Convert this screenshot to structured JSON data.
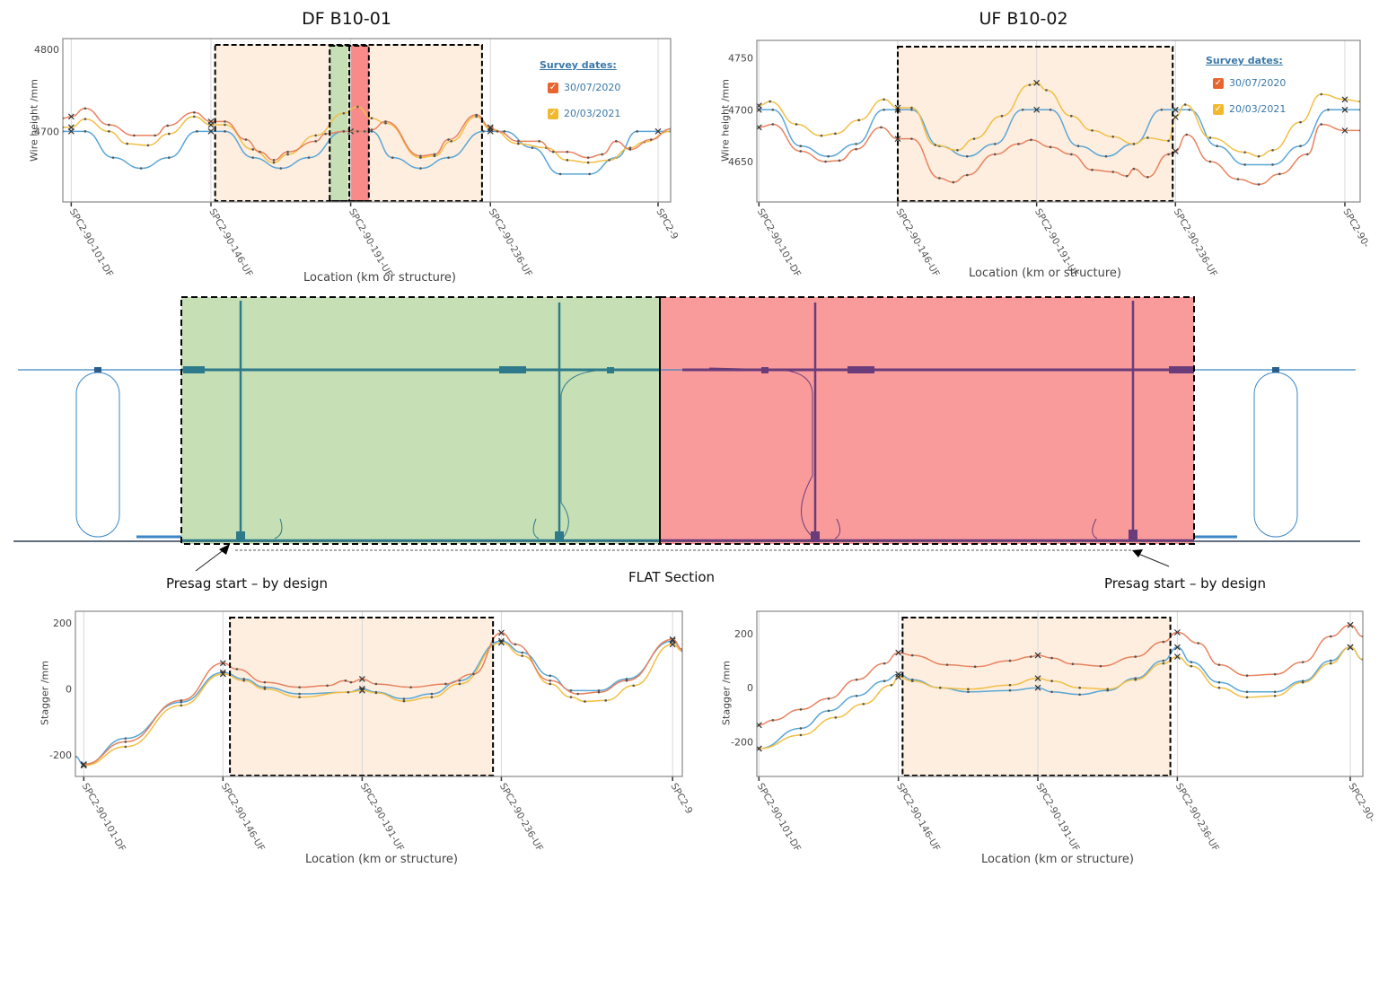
{
  "colors": {
    "design": "#5aa6d6",
    "survey_2020": "#e8825e",
    "survey_2021": "#f2bf45",
    "highlight": "#fdeee0",
    "green_zone": "#c6dfb5",
    "red_zone": "#fa9b9b"
  },
  "legend": {
    "title": "Survey dates:",
    "items": [
      {
        "label": "30/07/2020",
        "color": "#e8825e"
      },
      {
        "label": "20/03/2021",
        "color": "#f2bf45"
      }
    ]
  },
  "diagram": {
    "left_label": "Presag start – by design",
    "center_label": "FLAT Section",
    "right_label": "Presag start – by design"
  },
  "chart_data": [
    {
      "type": "line",
      "title": "DF B10-01",
      "ylabel": "Wire height /mm",
      "xlabel": "Location (km or structure)",
      "xlim": [
        -0.06,
        4.29
      ],
      "ylim": [
        4614,
        4813
      ],
      "yticks": [
        4700,
        4800
      ],
      "grid": "vertical at structures",
      "legend": "top-right",
      "ticks": [
        {
          "label": "SPC2-90-101-DF",
          "x": 0
        },
        {
          "label": "SPC2-90-146-UF",
          "x": 1
        },
        {
          "label": "SPC2-90-191-UF",
          "x": 2
        },
        {
          "label": "SPC2-90-236-UF",
          "x": 3
        },
        {
          "label": "SPC2-9",
          "x": 4.2
        }
      ],
      "highlight": {
        "x": [
          1.03,
          2.94
        ]
      },
      "green_band": {
        "x": [
          1.85,
          1.98
        ]
      },
      "red_band": {
        "x": [
          1.99,
          2.13
        ]
      },
      "series": [
        {
          "key": "design",
          "x": [
            -0.06,
            0,
            0.1,
            0.3,
            0.5,
            0.7,
            0.9,
            1.0,
            1.1,
            1.3,
            1.5,
            1.7,
            1.95,
            2.0,
            2.15,
            2.3,
            2.5,
            2.7,
            2.95,
            3.0,
            3.1,
            3.3,
            3.5,
            3.71,
            3.9,
            4.05,
            4.2,
            4.29
          ],
          "y": [
            4700,
            4700,
            4700,
            4668,
            4655,
            4668,
            4700,
            4700,
            4700,
            4668,
            4655,
            4668,
            4700,
            4700,
            4700,
            4668,
            4655,
            4668,
            4700,
            4700,
            4700,
            4680,
            4648,
            4648,
            4668,
            4700,
            4700,
            4700
          ]
        },
        {
          "name": "30/07/2020",
          "key": "survey_2020",
          "x": [
            -0.06,
            0,
            0.1,
            0.27,
            0.45,
            0.6,
            0.69,
            0.88,
            1.0,
            1.1,
            1.25,
            1.35,
            1.45,
            1.55,
            1.75,
            1.82,
            1.95,
            2.05,
            2.1,
            2.15,
            2.25,
            2.5,
            2.6,
            2.7,
            2.9,
            3.0,
            3.05,
            3.2,
            3.35,
            3.45,
            3.55,
            3.7,
            3.8,
            3.9,
            4.0,
            4.15,
            4.29
          ],
          "y": [
            4716,
            4718,
            4728,
            4708,
            4695,
            4695,
            4707,
            4723,
            4712,
            4712,
            4690,
            4675,
            4665,
            4675,
            4688,
            4697,
            4700,
            4700,
            4700,
            4702,
            4712,
            4670,
            4672,
            4690,
            4720,
            4705,
            4700,
            4688,
            4688,
            4675,
            4675,
            4668,
            4672,
            4688,
            4678,
            4690,
            4703
          ]
        },
        {
          "name": "20/03/2021",
          "key": "survey_2021",
          "x": [
            -0.06,
            0,
            0.1,
            0.27,
            0.4,
            0.55,
            0.7,
            0.88,
            1.0,
            1.1,
            1.3,
            1.45,
            1.55,
            1.75,
            1.95,
            2.05,
            2.15,
            2.25,
            2.5,
            2.6,
            2.72,
            2.9,
            3.0,
            3.2,
            3.4,
            3.55,
            3.7,
            3.85,
            4.0,
            4.1,
            4.29
          ],
          "y": [
            4705,
            4705,
            4715,
            4700,
            4685,
            4683,
            4697,
            4718,
            4708,
            4708,
            4678,
            4662,
            4672,
            4695,
            4722,
            4730,
            4716,
            4710,
            4668,
            4670,
            4688,
            4718,
            4703,
            4685,
            4680,
            4665,
            4662,
            4665,
            4680,
            4687,
            4700
          ]
        }
      ]
    },
    {
      "type": "line",
      "title": "UF B10-02",
      "ylabel": "Wire height /mm",
      "xlabel": "Location (km or structure)",
      "xlim": [
        -0.015,
        4.33
      ],
      "ylim": [
        4611,
        4767
      ],
      "yticks": [
        4650,
        4700,
        4750
      ],
      "grid": "vertical at structures",
      "legend": "top-right",
      "ticks": [
        {
          "label": "SPC2-90-101-DF",
          "x": 0
        },
        {
          "label": "SPC2-90-146-UF",
          "x": 1
        },
        {
          "label": "SPC2-90-191-UF",
          "x": 2
        },
        {
          "label": "SPC2-90-236-UF",
          "x": 3
        },
        {
          "label": "SPC2-90-",
          "x": 4.22
        }
      ],
      "highlight": {
        "x": [
          1.0,
          2.98
        ]
      },
      "series": [
        {
          "key": "design",
          "x": [
            0,
            0.1,
            0.3,
            0.5,
            0.7,
            0.9,
            1.0,
            1.1,
            1.3,
            1.5,
            1.7,
            1.9,
            2.0,
            2.1,
            2.3,
            2.5,
            2.7,
            2.9,
            3.0,
            3.1,
            3.3,
            3.5,
            3.7,
            3.9,
            4.1,
            4.22,
            4.33
          ],
          "y": [
            4700,
            4700,
            4665,
            4655,
            4667,
            4700,
            4700,
            4700,
            4665,
            4655,
            4667,
            4700,
            4700,
            4700,
            4665,
            4655,
            4667,
            4700,
            4700,
            4700,
            4665,
            4647,
            4647,
            4665,
            4700,
            4700,
            4700
          ]
        },
        {
          "name": "30/07/2020",
          "key": "survey_2020",
          "x": [
            0,
            0.1,
            0.3,
            0.48,
            0.58,
            0.7,
            0.88,
            1.0,
            1.1,
            1.3,
            1.4,
            1.5,
            1.7,
            1.87,
            1.96,
            2.1,
            2.25,
            2.4,
            2.55,
            2.65,
            2.7,
            2.8,
            2.95,
            3.0,
            3.08,
            3.25,
            3.45,
            3.6,
            3.75,
            3.95,
            4.05,
            4.22,
            4.33
          ],
          "y": [
            4683,
            4686,
            4660,
            4650,
            4651,
            4662,
            4683,
            4672,
            4672,
            4634,
            4630,
            4637,
            4657,
            4667,
            4671,
            4664,
            4657,
            4642,
            4640,
            4636,
            4643,
            4635,
            4657,
            4660,
            4676,
            4650,
            4633,
            4628,
            4638,
            4657,
            4686,
            4680,
            4680
          ]
        },
        {
          "name": "20/03/2021",
          "key": "survey_2021",
          "x": [
            0,
            0.08,
            0.27,
            0.45,
            0.55,
            0.72,
            0.9,
            1.0,
            1.1,
            1.27,
            1.43,
            1.55,
            1.75,
            1.95,
            2.0,
            2.07,
            2.25,
            2.4,
            2.55,
            2.7,
            2.8,
            2.95,
            3.0,
            3.07,
            3.25,
            3.5,
            3.6,
            3.7,
            3.9,
            4.05,
            4.22,
            4.33
          ],
          "y": [
            4704,
            4708,
            4686,
            4675,
            4677,
            4690,
            4710,
            4702,
            4702,
            4666,
            4661,
            4672,
            4694,
            4724,
            4726,
            4719,
            4694,
            4680,
            4674,
            4667,
            4673,
            4670,
            4693,
            4705,
            4673,
            4659,
            4655,
            4661,
            4688,
            4715,
            4710,
            4708
          ]
        }
      ]
    },
    {
      "type": "line",
      "title": "",
      "ylabel": "Stagger /mm",
      "xlabel": "Location (km or structure)",
      "xlim": [
        -0.06,
        4.3
      ],
      "ylim": [
        -265,
        235
      ],
      "yticks": [
        -200,
        0,
        200
      ],
      "grid": "vertical at structures",
      "ticks": [
        {
          "label": "SPC2-90-101-DF",
          "x": 0
        },
        {
          "label": "SPC2-90-146-UF",
          "x": 1
        },
        {
          "label": "SPC2-90-191-UF",
          "x": 2
        },
        {
          "label": "SPC2-90-236-UF",
          "x": 3
        },
        {
          "label": "SPC2-9",
          "x": 4.23
        }
      ],
      "highlight": {
        "x": [
          1.05,
          2.94
        ]
      },
      "series": [
        {
          "key": "design",
          "x": [
            -0.06,
            0,
            0.3,
            0.7,
            1.0,
            1.15,
            1.3,
            1.55,
            1.9,
            2.0,
            2.1,
            2.3,
            2.5,
            2.7,
            3.0,
            3.15,
            3.35,
            3.5,
            3.7,
            3.9,
            4.23,
            4.3
          ],
          "y": [
            -205,
            -230,
            -150,
            -40,
            50,
            30,
            5,
            -15,
            -10,
            0,
            -10,
            -30,
            -15,
            25,
            145,
            110,
            40,
            -5,
            -5,
            30,
            145,
            120
          ]
        },
        {
          "name": "30/07/2020",
          "key": "survey_2020",
          "x": [
            0,
            0.3,
            0.7,
            1.0,
            1.1,
            1.3,
            1.55,
            1.75,
            1.88,
            1.92,
            2.0,
            2.1,
            2.35,
            2.6,
            2.8,
            3.0,
            3.1,
            3.35,
            3.55,
            3.7,
            3.9,
            4.23,
            4.3
          ],
          "y": [
            -228,
            -160,
            -35,
            78,
            60,
            20,
            5,
            10,
            25,
            20,
            30,
            15,
            5,
            15,
            45,
            170,
            135,
            25,
            -15,
            -10,
            25,
            150,
            120
          ]
        },
        {
          "name": "20/03/2021",
          "key": "survey_2021",
          "x": [
            0,
            0.3,
            0.7,
            1.0,
            1.15,
            1.3,
            1.55,
            1.9,
            2.0,
            2.1,
            2.3,
            2.5,
            2.7,
            3.0,
            3.15,
            3.35,
            3.5,
            3.6,
            3.75,
            3.95,
            4.23,
            4.3
          ],
          "y": [
            -232,
            -175,
            -50,
            45,
            25,
            0,
            -25,
            -10,
            -5,
            -12,
            -37,
            -25,
            15,
            140,
            100,
            15,
            -25,
            -38,
            -35,
            10,
            135,
            115
          ]
        }
      ]
    },
    {
      "type": "line",
      "title": "",
      "ylabel": "Stagger /mm",
      "xlabel": "Location (km or structure)",
      "xlim": [
        -0.015,
        4.33
      ],
      "ylim": [
        -328,
        283
      ],
      "yticks": [
        -200,
        0,
        200
      ],
      "grid": "vertical at structures",
      "ticks": [
        {
          "label": "SPC2-90-101-DF",
          "x": 0
        },
        {
          "label": "SPC2-90-146-UF",
          "x": 1
        },
        {
          "label": "SPC2-90-191-UF",
          "x": 2
        },
        {
          "label": "SPC2-90-236-UF",
          "x": 3
        },
        {
          "label": "SPC2-90-",
          "x": 4.24
        }
      ],
      "highlight": {
        "x": [
          1.03,
          2.95
        ]
      },
      "series": [
        {
          "key": "design",
          "x": [
            0,
            0.3,
            0.5,
            0.7,
            0.9,
            1.0,
            1.1,
            1.3,
            1.5,
            1.8,
            2.0,
            2.1,
            2.3,
            2.5,
            2.7,
            2.9,
            3.0,
            3.1,
            3.3,
            3.5,
            3.7,
            3.9,
            4.1,
            4.24,
            4.33
          ],
          "y": [
            -225,
            -150,
            -85,
            -30,
            25,
            50,
            30,
            0,
            -15,
            -10,
            0,
            -15,
            -25,
            -10,
            35,
            100,
            150,
            95,
            20,
            -15,
            -15,
            25,
            100,
            150,
            105
          ]
        },
        {
          "name": "30/07/2020",
          "key": "survey_2020",
          "x": [
            0,
            0.1,
            0.3,
            0.5,
            0.7,
            0.9,
            1.0,
            1.1,
            1.35,
            1.55,
            1.8,
            1.95,
            2.0,
            2.1,
            2.25,
            2.45,
            2.7,
            2.9,
            3.0,
            3.15,
            3.3,
            3.5,
            3.7,
            3.9,
            4.1,
            4.24,
            4.33
          ],
          "y": [
            -138,
            -120,
            -80,
            -40,
            30,
            90,
            130,
            120,
            85,
            78,
            100,
            115,
            120,
            110,
            88,
            80,
            115,
            170,
            205,
            165,
            85,
            45,
            50,
            95,
            190,
            232,
            190
          ]
        },
        {
          "name": "20/03/2021",
          "key": "survey_2021",
          "x": [
            0,
            0.3,
            0.55,
            0.75,
            0.95,
            1.0,
            1.1,
            1.3,
            1.5,
            1.8,
            2.0,
            2.1,
            2.3,
            2.5,
            2.7,
            2.9,
            3.0,
            3.1,
            3.3,
            3.5,
            3.7,
            3.9,
            4.1,
            4.24,
            4.33
          ],
          "y": [
            -225,
            -175,
            -110,
            -60,
            10,
            40,
            25,
            0,
            -5,
            10,
            35,
            25,
            0,
            -5,
            30,
            90,
            115,
            80,
            0,
            -35,
            -30,
            20,
            90,
            150,
            105
          ]
        }
      ]
    }
  ]
}
